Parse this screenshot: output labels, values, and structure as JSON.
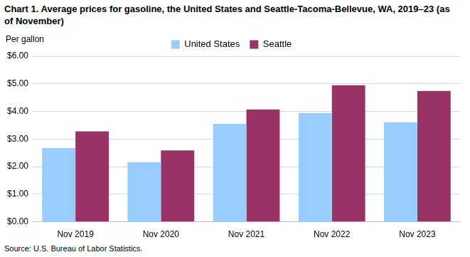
{
  "chart_data": {
    "type": "bar",
    "title": "Chart 1. Average prices for gasoline, the United States and Seattle-Tacoma-Bellevue, WA, 2019–23 (as of November)",
    "y_label": "Per gallon",
    "source": "Source: U.S. Bureau of Labor Statistics.",
    "categories": [
      "Nov 2019",
      "Nov 2020",
      "Nov 2021",
      "Nov 2022",
      "Nov 2023"
    ],
    "series": [
      {
        "name": "United States",
        "color": "#99ccff",
        "values": [
          2.67,
          2.16,
          3.55,
          3.94,
          3.61
        ]
      },
      {
        "name": "Seattle",
        "color": "#993366",
        "values": [
          3.28,
          2.59,
          4.07,
          4.95,
          4.74
        ]
      }
    ],
    "ylim": [
      0,
      6
    ],
    "yticks": [
      {
        "value": 0,
        "label": "$0.00"
      },
      {
        "value": 1,
        "label": "$1.00"
      },
      {
        "value": 2,
        "label": "$2.00"
      },
      {
        "value": 3,
        "label": "$3.00"
      },
      {
        "value": 4,
        "label": "$4.00"
      },
      {
        "value": 5,
        "label": "$5.00"
      },
      {
        "value": 6,
        "label": "$6.00"
      }
    ],
    "grid": true,
    "legend": "top"
  }
}
